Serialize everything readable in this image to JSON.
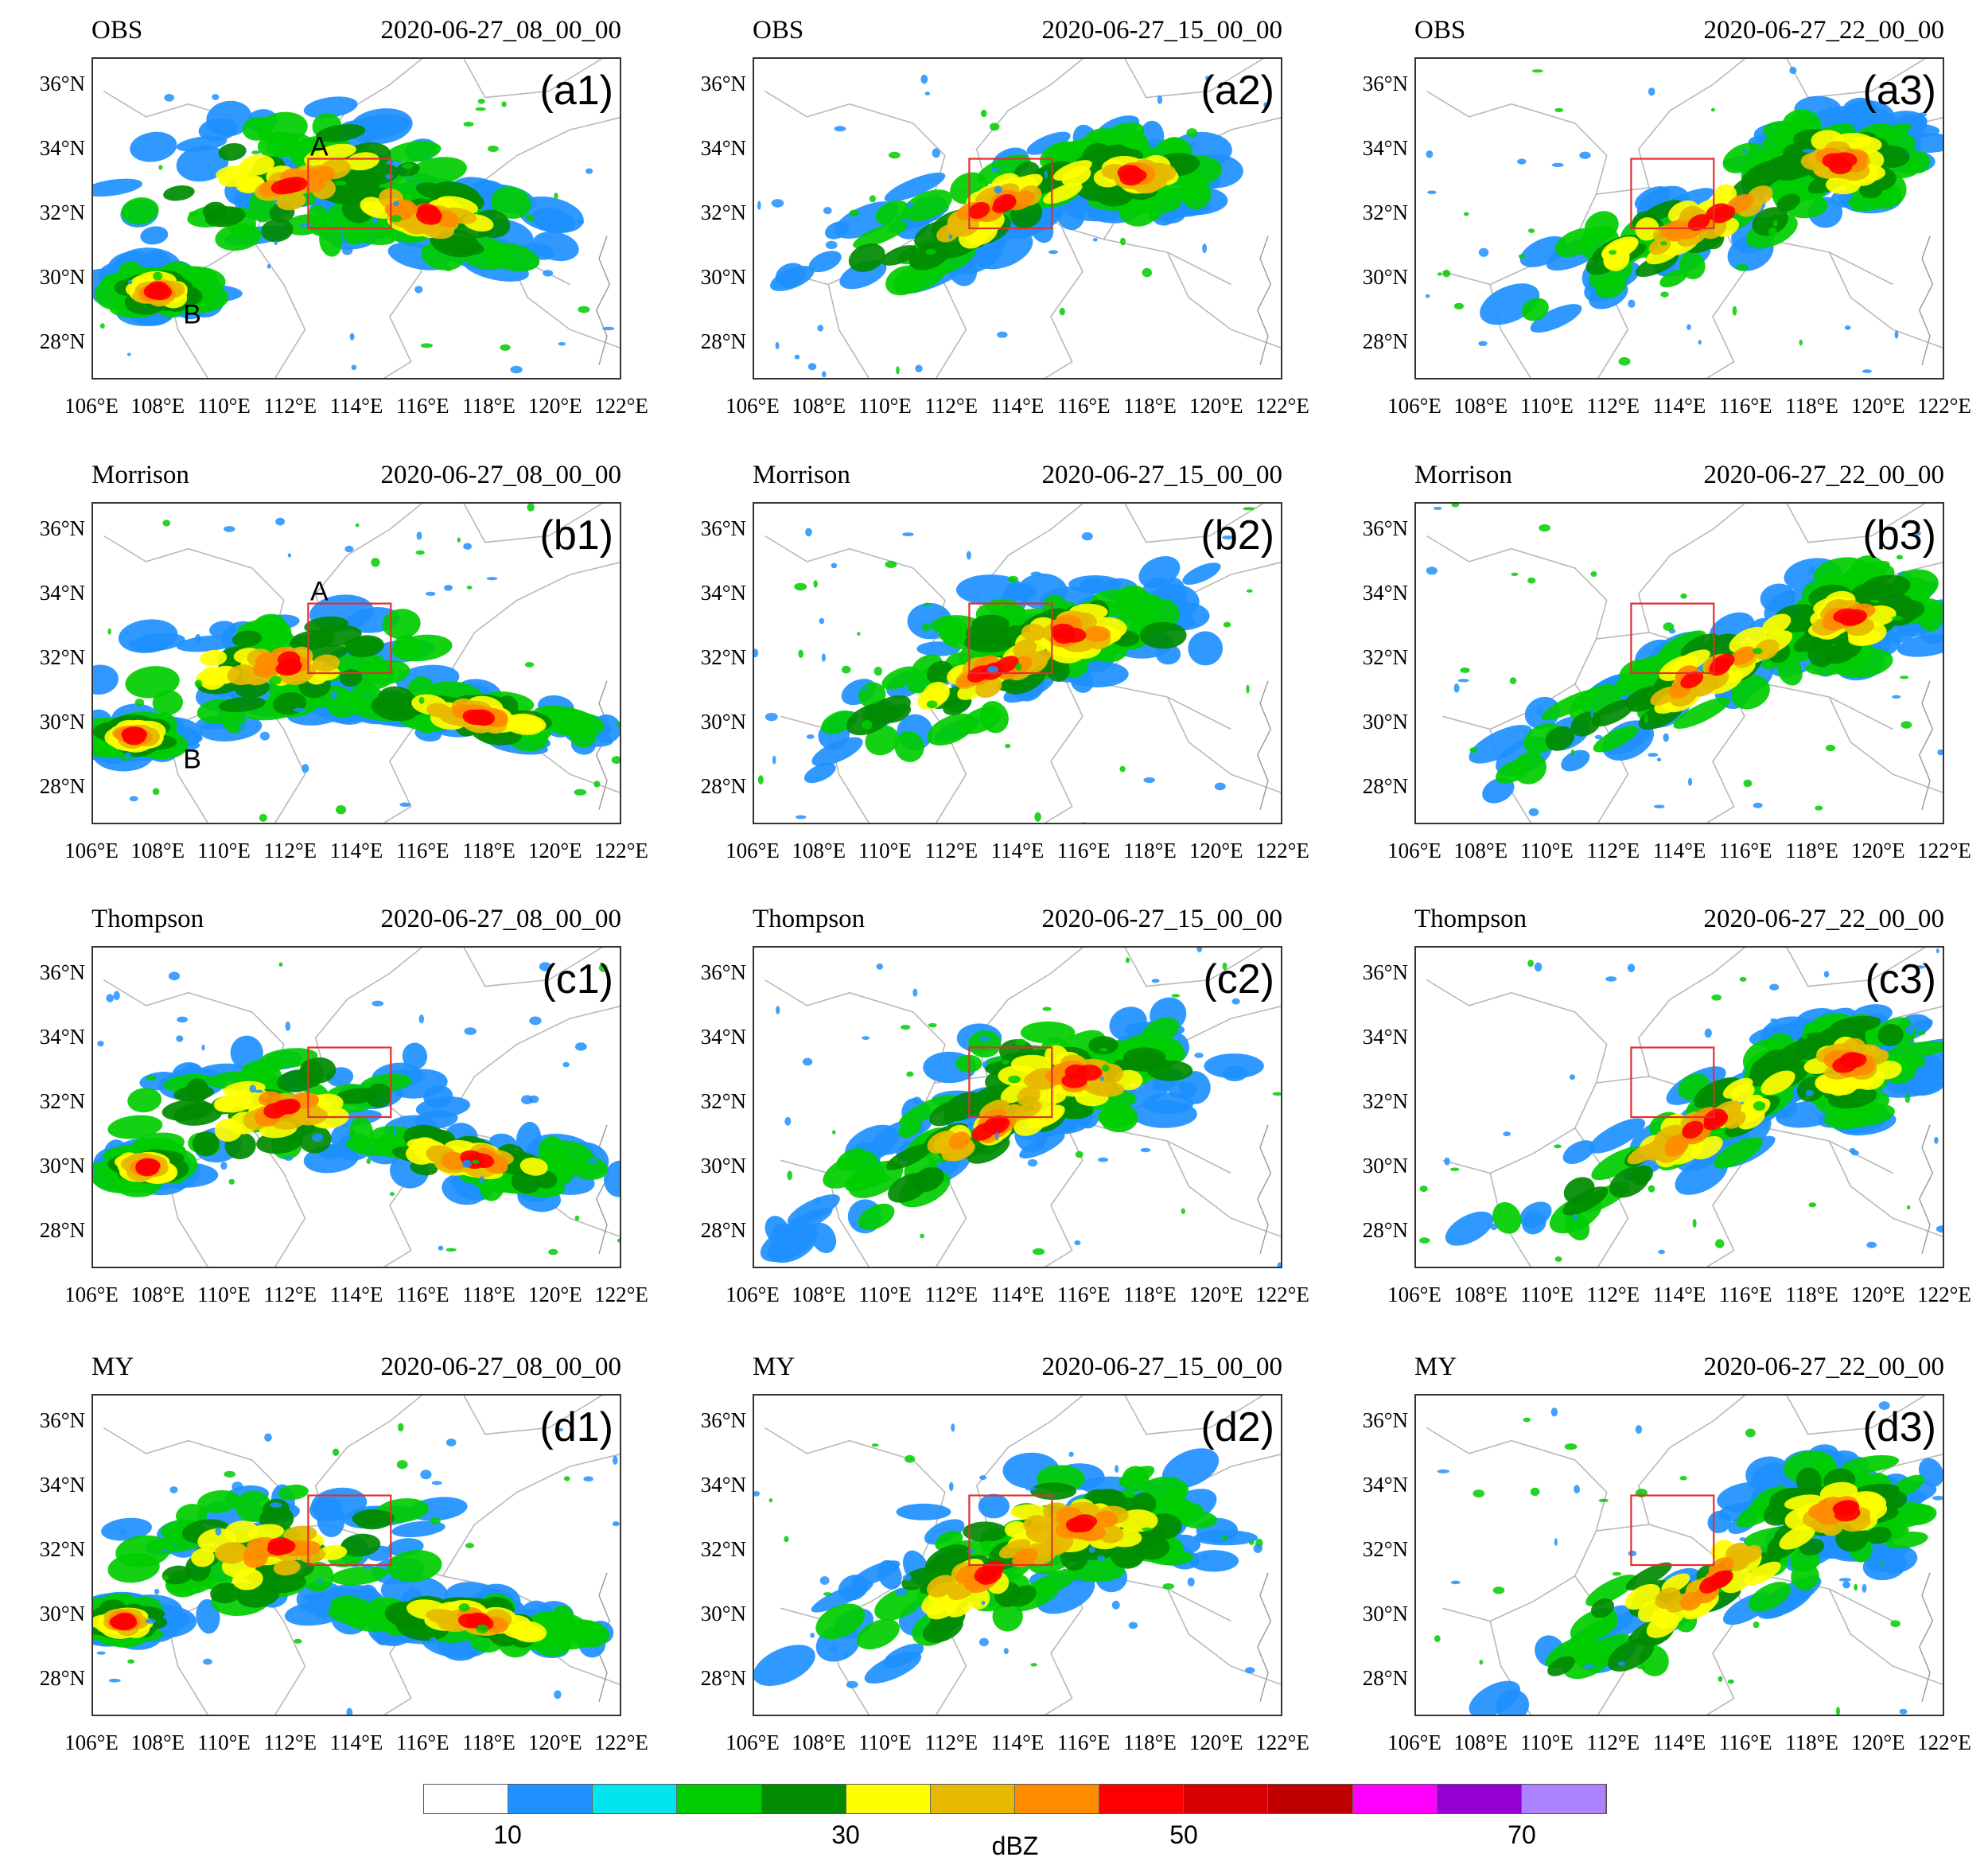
{
  "figure": {
    "colorbar": {
      "colors": [
        "#ffffff",
        "#1e90ff",
        "#00e5ee",
        "#00cd00",
        "#008b00",
        "#ffff00",
        "#e6b800",
        "#ff8c00",
        "#ff0000",
        "#d70000",
        "#c00000",
        "#ff00ff",
        "#9400d3",
        "#ab82ff"
      ],
      "tick_labels": [
        "10",
        "30",
        "50",
        "70"
      ],
      "unit": "dBZ"
    },
    "axes": {
      "lat_ticks": [
        "36°N",
        "34°N",
        "32°N",
        "30°N",
        "28°N"
      ],
      "lon_ticks": [
        "106°E",
        "108°E",
        "110°E",
        "112°E",
        "114°E",
        "116°E",
        "118°E",
        "120°E",
        "122°E"
      ]
    },
    "red_box_color": "#e03030",
    "rows": [
      {
        "model": "OBS",
        "panels": [
          {
            "tag": "(a1)",
            "time": "2020-06-27_08_00_00",
            "points": [
              "A",
              "B"
            ]
          },
          {
            "tag": "(a2)",
            "time": "2020-06-27_15_00_00",
            "points": []
          },
          {
            "tag": "(a3)",
            "time": "2020-06-27_22_00_00",
            "points": []
          }
        ]
      },
      {
        "model": "Morrison",
        "panels": [
          {
            "tag": "(b1)",
            "time": "2020-06-27_08_00_00",
            "points": [
              "A",
              "B"
            ]
          },
          {
            "tag": "(b2)",
            "time": "2020-06-27_15_00_00",
            "points": []
          },
          {
            "tag": "(b3)",
            "time": "2020-06-27_22_00_00",
            "points": []
          }
        ]
      },
      {
        "model": "Thompson",
        "panels": [
          {
            "tag": "(c1)",
            "time": "2020-06-27_08_00_00",
            "points": []
          },
          {
            "tag": "(c2)",
            "time": "2020-06-27_15_00_00",
            "points": []
          },
          {
            "tag": "(c3)",
            "time": "2020-06-27_22_00_00",
            "points": []
          }
        ]
      },
      {
        "model": "MY",
        "panels": [
          {
            "tag": "(d1)",
            "time": "2020-06-27_08_00_00",
            "points": []
          },
          {
            "tag": "(d2)",
            "time": "2020-06-27_15_00_00",
            "points": []
          },
          {
            "tag": "(d3)",
            "time": "2020-06-27_22_00_00",
            "points": []
          }
        ]
      }
    ]
  }
}
